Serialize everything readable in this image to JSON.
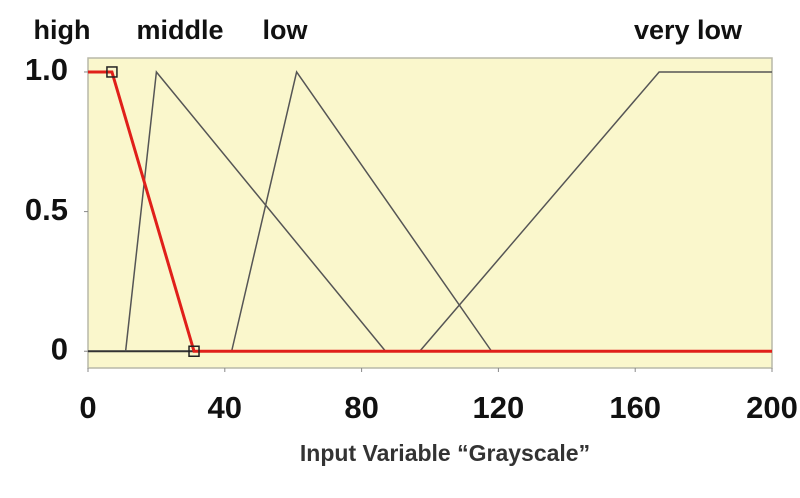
{
  "chart_data": {
    "type": "line",
    "xlabel": "Input Variable “Grayscale”",
    "series": [
      {
        "name": "high",
        "color": "#e0201a",
        "x": [
          0,
          7,
          31,
          200
        ],
        "values": [
          1,
          1,
          0,
          0
        ],
        "marker": "square"
      },
      {
        "name": "middle",
        "color": "#555555",
        "x": [
          11,
          20,
          87
        ],
        "values": [
          0,
          1,
          0
        ]
      },
      {
        "name": "low",
        "color": "#555555",
        "x": [
          42,
          61,
          118
        ],
        "values": [
          0,
          1,
          0
        ]
      },
      {
        "name": "very low",
        "color": "#555555",
        "x": [
          97,
          167,
          200
        ],
        "values": [
          0,
          1,
          1
        ]
      }
    ],
    "xlim": [
      0,
      200
    ],
    "ylim": [
      -0.06,
      1.05
    ],
    "xticks": [
      0,
      40,
      80,
      120,
      160,
      200
    ],
    "yticks": [
      0,
      0.5,
      {
        "value": 1,
        "label": "1.0"
      }
    ],
    "background": "#faf7cc"
  }
}
